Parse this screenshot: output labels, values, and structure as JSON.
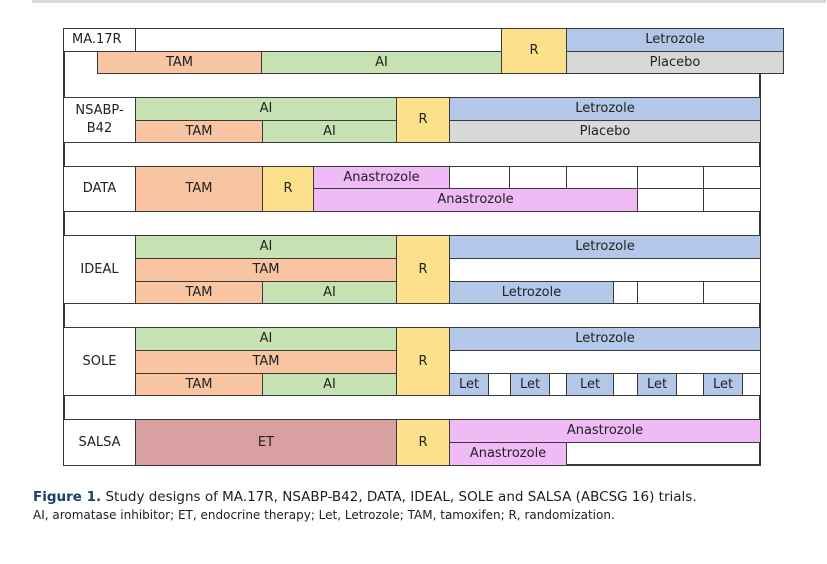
{
  "labels": {
    "ma17r": "MA.17R",
    "nsabp": "NSABP-\nB42",
    "data": "DATA",
    "ideal": "IDEAL",
    "sole": "SOLE",
    "salsa": "SALSA"
  },
  "arms": {
    "tam": "TAM",
    "ai": "AI",
    "r": "R",
    "letrozole": "Letrozole",
    "placebo": "Placebo",
    "anastrozole": "Anastrozole",
    "let": "Let",
    "et": "ET"
  },
  "caption": {
    "figure": "Figure 1.",
    "title": "Study designs of MA.17R, NSABP-B42, DATA, IDEAL, SOLE and SALSA (ABCSG 16) trials.",
    "abbrev": "AI, aromatase inhibitor; ET, endocrine therapy; Let, Letrozole; TAM, tamoxifen; R, randomization."
  },
  "colors": {
    "tam": "#f8c4a1",
    "ai": "#c7e2b2",
    "randomization": "#fde08b",
    "letrozole": "#b3c7e8",
    "placebo": "#d8d8d8",
    "anastrozole": "#efbaf6",
    "et": "#d8a0a0",
    "caption_figure": "#1b3f6e"
  }
}
